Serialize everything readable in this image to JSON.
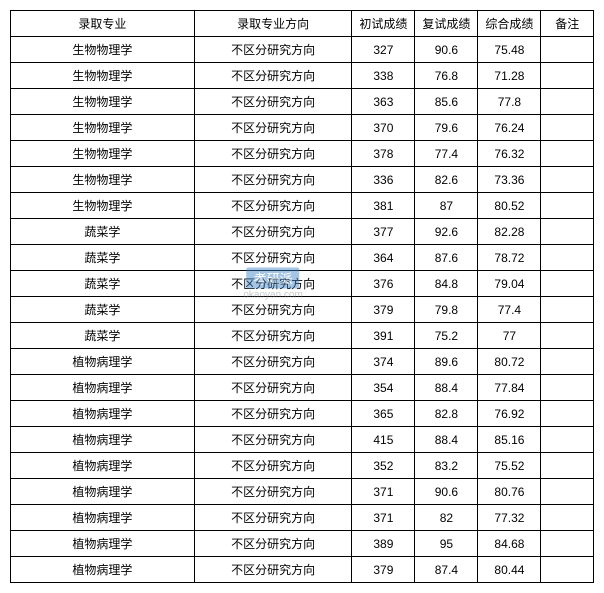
{
  "table": {
    "columns": [
      "录取专业",
      "录取专业方向",
      "初试成绩",
      "复试成绩",
      "综合成绩",
      "备注"
    ],
    "col_classes": [
      "col-major",
      "col-direction",
      "col-score1",
      "col-score2",
      "col-score3",
      "col-remark"
    ],
    "rows": [
      [
        "生物物理学",
        "不区分研究方向",
        "327",
        "90.6",
        "75.48",
        ""
      ],
      [
        "生物物理学",
        "不区分研究方向",
        "338",
        "76.8",
        "71.28",
        ""
      ],
      [
        "生物物理学",
        "不区分研究方向",
        "363",
        "85.6",
        "77.8",
        ""
      ],
      [
        "生物物理学",
        "不区分研究方向",
        "370",
        "79.6",
        "76.24",
        ""
      ],
      [
        "生物物理学",
        "不区分研究方向",
        "378",
        "77.4",
        "76.32",
        ""
      ],
      [
        "生物物理学",
        "不区分研究方向",
        "336",
        "82.6",
        "73.36",
        ""
      ],
      [
        "生物物理学",
        "不区分研究方向",
        "381",
        "87",
        "80.52",
        ""
      ],
      [
        "蔬菜学",
        "不区分研究方向",
        "377",
        "92.6",
        "82.28",
        ""
      ],
      [
        "蔬菜学",
        "不区分研究方向",
        "364",
        "87.6",
        "78.72",
        ""
      ],
      [
        "蔬菜学",
        "不区分研究方向",
        "376",
        "84.8",
        "79.04",
        ""
      ],
      [
        "蔬菜学",
        "不区分研究方向",
        "379",
        "79.8",
        "77.4",
        ""
      ],
      [
        "蔬菜学",
        "不区分研究方向",
        "391",
        "75.2",
        "77",
        ""
      ],
      [
        "植物病理学",
        "不区分研究方向",
        "374",
        "89.6",
        "80.72",
        ""
      ],
      [
        "植物病理学",
        "不区分研究方向",
        "354",
        "88.4",
        "77.84",
        ""
      ],
      [
        "植物病理学",
        "不区分研究方向",
        "365",
        "82.8",
        "76.92",
        ""
      ],
      [
        "植物病理学",
        "不区分研究方向",
        "415",
        "88.4",
        "85.16",
        ""
      ],
      [
        "植物病理学",
        "不区分研究方向",
        "352",
        "83.2",
        "75.52",
        ""
      ],
      [
        "植物病理学",
        "不区分研究方向",
        "371",
        "90.6",
        "80.76",
        ""
      ],
      [
        "植物病理学",
        "不区分研究方向",
        "371",
        "82",
        "77.32",
        ""
      ],
      [
        "植物病理学",
        "不区分研究方向",
        "389",
        "95",
        "84.68",
        ""
      ],
      [
        "植物病理学",
        "不区分研究方向",
        "379",
        "87.4",
        "80.44",
        ""
      ]
    ],
    "watermark_row_index": 9,
    "watermark_col_index": 1,
    "border_color": "#000000",
    "background_color": "#ffffff",
    "font_size": 12
  },
  "watermark": {
    "box_text": "考研派",
    "url_text": "okaoyan.com",
    "box_bg": "#3a7fc4",
    "box_color": "#ffffff",
    "url_color": "#888888"
  }
}
